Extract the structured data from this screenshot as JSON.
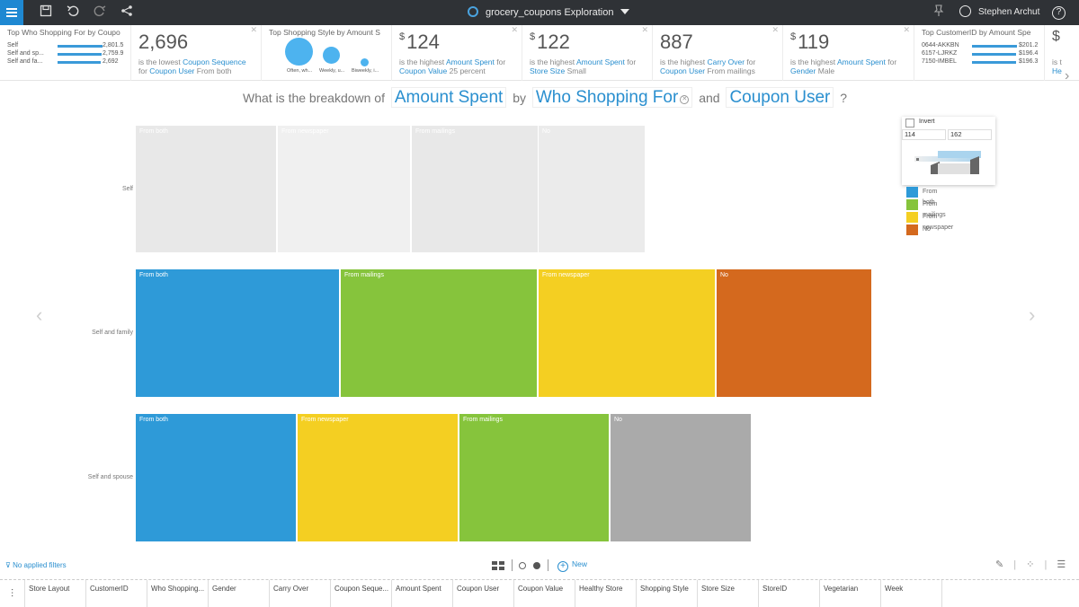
{
  "app": {
    "title": "grocery_coupons Exploration",
    "user_name": "Stephen Archut",
    "help": "?"
  },
  "cards": [
    {
      "caption_pre": "Top",
      "caption_field": "Who Shopping For",
      "caption_mid": "by",
      "caption_measure": "Coupo",
      "rows": [
        {
          "label": "Self",
          "value": "2,801.5",
          "fraction": 1.0
        },
        {
          "label": "Self and sp...",
          "value": "2,759.9",
          "fraction": 0.985
        },
        {
          "label": "Self and fa...",
          "value": "2,692",
          "fraction": 0.96
        }
      ]
    },
    {
      "big": "2,696",
      "sub1_pre": "is the lowest",
      "sub1_field": "Coupon Sequence",
      "sub2_pre": "for",
      "sub2_field": "Coupon User",
      "sub2_value": "From both"
    },
    {
      "caption_pre": "Top",
      "caption_field": "Shopping Style",
      "caption_mid": "by",
      "caption_measure": "Amount S",
      "bubbles": [
        {
          "label": "Often, wh...",
          "size": 1.0
        },
        {
          "label": "Weekly, u...",
          "size": 0.62
        },
        {
          "label": "Biweekly, i...",
          "size": 0.3
        }
      ]
    },
    {
      "currency": "$",
      "big": "124",
      "sub1_pre": "is the highest",
      "sub1_field": "Amount Spent",
      "sub1_post": "for",
      "sub2_field": "Coupon Value",
      "sub2_value": "25 percent"
    },
    {
      "currency": "$",
      "big": "122",
      "sub1_pre": "is the highest",
      "sub1_field": "Amount Spent",
      "sub1_post": "for",
      "sub2_field": "Store Size",
      "sub2_value": "Small"
    },
    {
      "big": "887",
      "sub1_pre": "is the highest",
      "sub1_field": "Carry Over",
      "sub1_post": "for",
      "sub2_field": "Coupon User",
      "sub2_value": "From mailings"
    },
    {
      "currency": "$",
      "big": "119",
      "sub1_pre": "is the highest",
      "sub1_field": "Amount Spent",
      "sub1_post": "for",
      "sub2_field": "Gender",
      "sub2_value": "Male"
    },
    {
      "caption_pre": "Top",
      "caption_field": "CustomerID",
      "caption_mid": "by",
      "caption_measure": "Amount Spe",
      "rows": [
        {
          "label": "0644-AKKBN",
          "value": "$201.2",
          "fraction": 1.0
        },
        {
          "label": "6157-LJRKZ",
          "value": "$196.4",
          "fraction": 0.976
        },
        {
          "label": "7150-IMBEL",
          "value": "$196.3",
          "fraction": 0.975
        }
      ]
    },
    {
      "currency": "$",
      "sub1_pre": "is t",
      "sub2_field": "He"
    }
  ],
  "question": {
    "pre": "What is the breakdown of",
    "measure": "Amount Spent",
    "by": "by",
    "field1": "Who Shopping For",
    "and": "and",
    "field2": "Coupon User",
    "qm": "?"
  },
  "chart_data": {
    "type": "treemap",
    "rows": [
      {
        "label": "Self",
        "dimmed": true,
        "cells": [
          {
            "label": "From both",
            "color": "#e8e8e8"
          },
          {
            "label": "From newspaper",
            "color": "#f0f0f0"
          },
          {
            "label": "From mailings",
            "color": "#e8e8e8"
          },
          {
            "label": "No",
            "color": "#ebebeb"
          }
        ]
      },
      {
        "label": "Self and family",
        "dimmed": false,
        "cells": [
          {
            "label": "From both",
            "color": "#2e9ad8"
          },
          {
            "label": "From mailings",
            "color": "#86c43c"
          },
          {
            "label": "From newspaper",
            "color": "#f4cf22"
          },
          {
            "label": "No",
            "color": "#d4691e"
          }
        ]
      },
      {
        "label": "Self and spouse",
        "dimmed": false,
        "cells": [
          {
            "label": "From both",
            "color": "#2e9ad8"
          },
          {
            "label": "From newspaper",
            "color": "#f4cf22"
          },
          {
            "label": "From mailings",
            "color": "#86c43c"
          },
          {
            "label": "No",
            "color": "#aaaaaa"
          }
        ]
      }
    ],
    "legend": [
      {
        "label": "From both",
        "color": "#2e9ad8"
      },
      {
        "label": "From mailings",
        "color": "#86c43c"
      },
      {
        "label": "From newspaper",
        "color": "#f4cf22"
      },
      {
        "label": "No",
        "color": "#d4691e"
      }
    ],
    "range_min": "114",
    "range_max": "162",
    "invert_label": "Invert"
  },
  "bottom": {
    "filters": "No applied filters",
    "new_label": "New",
    "fields": [
      "Store Layout",
      "CustomerID",
      "Who Shopping...",
      "Gender",
      "Carry Over",
      "Coupon Seque...",
      "Amount Spent",
      "Coupon User",
      "Coupon Value",
      "Healthy Store",
      "Shopping Style",
      "Store Size",
      "StoreID",
      "Vegetarian",
      "Week"
    ]
  }
}
